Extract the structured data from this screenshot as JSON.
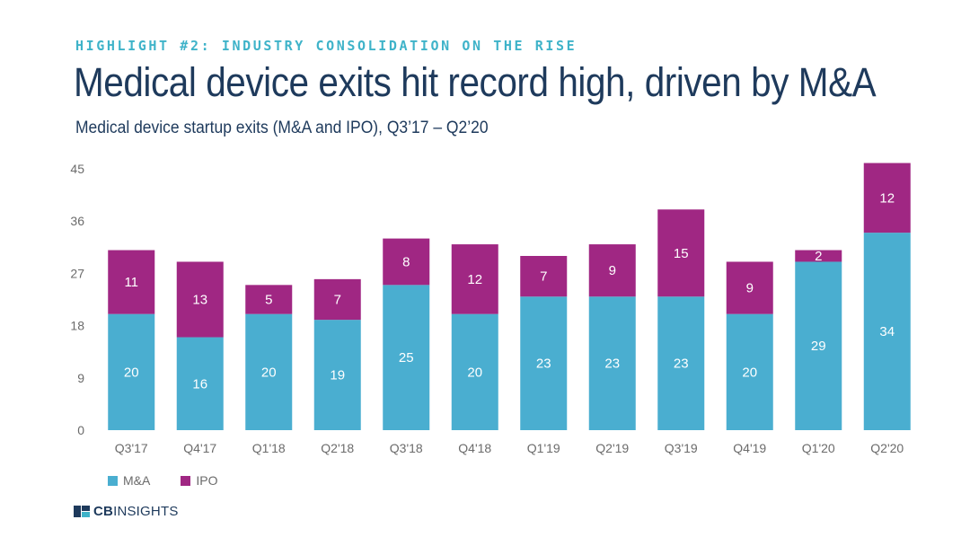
{
  "header": {
    "highlight": "HIGHLIGHT #2: INDUSTRY CONSOLIDATION ON THE RISE",
    "title": "Medical device exits hit record high, driven by M&A",
    "subtitle": "Medical device startup exits (M&A and IPO), Q3’17 – Q2’20"
  },
  "colors": {
    "ma": "#4aaed0",
    "ipo": "#a02783",
    "axis_text": "#6b6b6b",
    "grid": "#e6e6e6"
  },
  "chart_data": {
    "type": "bar",
    "stacked": true,
    "categories": [
      "Q3'17",
      "Q4'17",
      "Q1'18",
      "Q2'18",
      "Q3'18",
      "Q4'18",
      "Q1'19",
      "Q2'19",
      "Q3'19",
      "Q4'19",
      "Q1'20",
      "Q2'20"
    ],
    "series": [
      {
        "name": "M&A",
        "values": [
          20,
          16,
          20,
          19,
          25,
          20,
          23,
          23,
          23,
          20,
          29,
          34
        ]
      },
      {
        "name": "IPO",
        "values": [
          11,
          13,
          5,
          7,
          8,
          12,
          7,
          9,
          15,
          9,
          2,
          12
        ]
      }
    ],
    "yticks": [
      0,
      9,
      18,
      27,
      36,
      45
    ],
    "ylim": [
      0,
      45
    ],
    "legend_position": "bottom-left"
  },
  "legend": {
    "ma_label": "M&A",
    "ipo_label": "IPO"
  },
  "footer": {
    "logo_cb": "CB",
    "logo_insights": "INSIGHTS"
  }
}
